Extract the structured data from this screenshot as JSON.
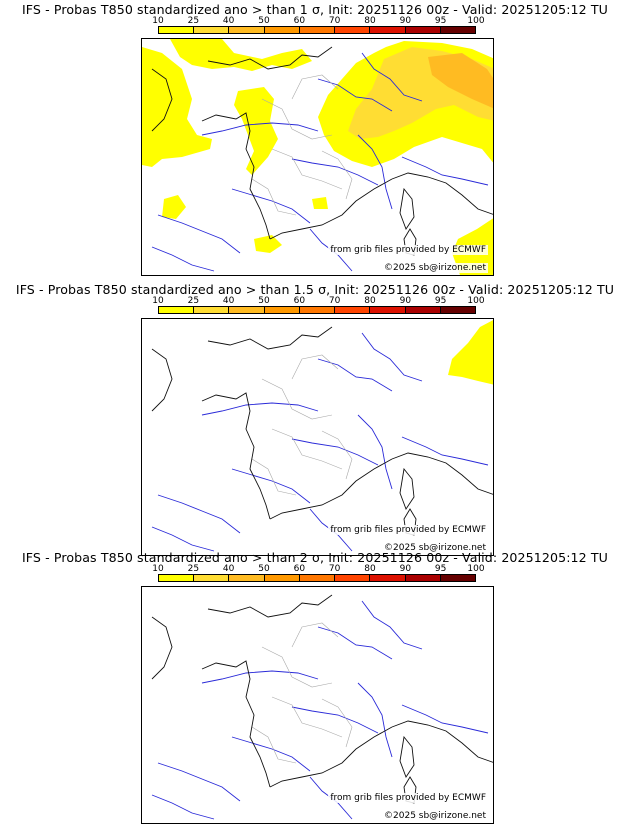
{
  "colorbar": {
    "ticks": [
      "10",
      "25",
      "40",
      "50",
      "60",
      "70",
      "80",
      "90",
      "95",
      "100"
    ],
    "colors": [
      "#ffff00",
      "#ffdd33",
      "#ffbb22",
      "#ff9900",
      "#ff7700",
      "#ff4400",
      "#dd1100",
      "#aa0000",
      "#660000"
    ]
  },
  "panels": [
    {
      "title": "IFS - Probas T850  standardized ano > than 1 σ, Init: 20251126 00z - Valid: 20251205:12 TU",
      "threshold": "1 σ",
      "source_credit": "from grib files provided by ECMWF",
      "copyright": "©2025 sb@irizone.net"
    },
    {
      "title": "IFS - Probas T850  standardized ano > than 1.5 σ, Init: 20251126 00z - Valid: 20251205:12 TU",
      "threshold": "1.5 σ",
      "source_credit": "from grib files provided by ECMWF",
      "copyright": "©2025 sb@irizone.net"
    },
    {
      "title": "IFS - Probas T850  standardized ano > than 2 σ, Init: 20251126 00z - Valid: 20251205:12 TU",
      "threshold": "2 σ",
      "source_credit": "from grib files provided by ECMWF",
      "copyright": "©2025 sb@irizone.net"
    }
  ],
  "colors": {
    "coast": "#111111",
    "borders": "#aaaaaa",
    "rivers": "#2a2ad8",
    "prob_low": "#ffff00",
    "prob_mid": "#ffdd33",
    "prob_high": "#ffbb22"
  }
}
